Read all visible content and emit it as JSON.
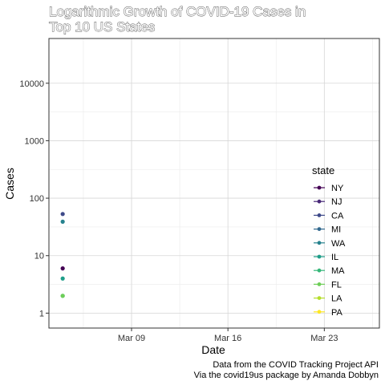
{
  "chart_data": {
    "type": "scatter",
    "title": "Logarithmic Growth of COVID-19 Cases in Top 10 US States",
    "title_lines": [
      "Logarithmic Growth of COVID-19 Cases in",
      "Top 10 US States"
    ],
    "xlabel": "Date",
    "ylabel": "Cases",
    "y_scale": "log10",
    "x_ticks": [
      {
        "date": "2020-03-09",
        "label": "Mar 09"
      },
      {
        "date": "2020-03-16",
        "label": "Mar 16"
      },
      {
        "date": "2020-03-23",
        "label": "Mar 23"
      }
    ],
    "y_ticks": [
      {
        "value": 1,
        "label": "1"
      },
      {
        "value": 10,
        "label": "10"
      },
      {
        "value": 100,
        "label": "100"
      },
      {
        "value": 1000,
        "label": "1000"
      },
      {
        "value": 10000,
        "label": "10000"
      }
    ],
    "xlim": [
      "2020-03-03",
      "2020-03-27"
    ],
    "ylim": [
      0.55,
      60000
    ],
    "grid": true,
    "legend_title": "state",
    "legend_position": "right",
    "series": [
      {
        "name": "NY",
        "color": "#440154",
        "points": [
          {
            "x": "2020-03-04",
            "y": 6
          }
        ]
      },
      {
        "name": "NJ",
        "color": "#482878",
        "points": []
      },
      {
        "name": "CA",
        "color": "#3e4a89",
        "points": [
          {
            "x": "2020-03-04",
            "y": 53
          }
        ]
      },
      {
        "name": "MI",
        "color": "#31688e",
        "points": []
      },
      {
        "name": "WA",
        "color": "#26828e",
        "points": [
          {
            "x": "2020-03-04",
            "y": 39
          }
        ]
      },
      {
        "name": "IL",
        "color": "#1f9e89",
        "points": [
          {
            "x": "2020-03-04",
            "y": 4
          }
        ]
      },
      {
        "name": "MA",
        "color": "#35b779",
        "points": [
          {
            "x": "2020-03-04",
            "y": 2
          }
        ]
      },
      {
        "name": "FL",
        "color": "#6ece58",
        "points": [
          {
            "x": "2020-03-04",
            "y": 2
          }
        ]
      },
      {
        "name": "LA",
        "color": "#b5de2b",
        "points": []
      },
      {
        "name": "PA",
        "color": "#fde725",
        "points": []
      }
    ]
  },
  "caption": {
    "line1": "Data from the COVID Tracking Project API",
    "line2": "Via the covid19us package by Amanda Dobbyn"
  }
}
